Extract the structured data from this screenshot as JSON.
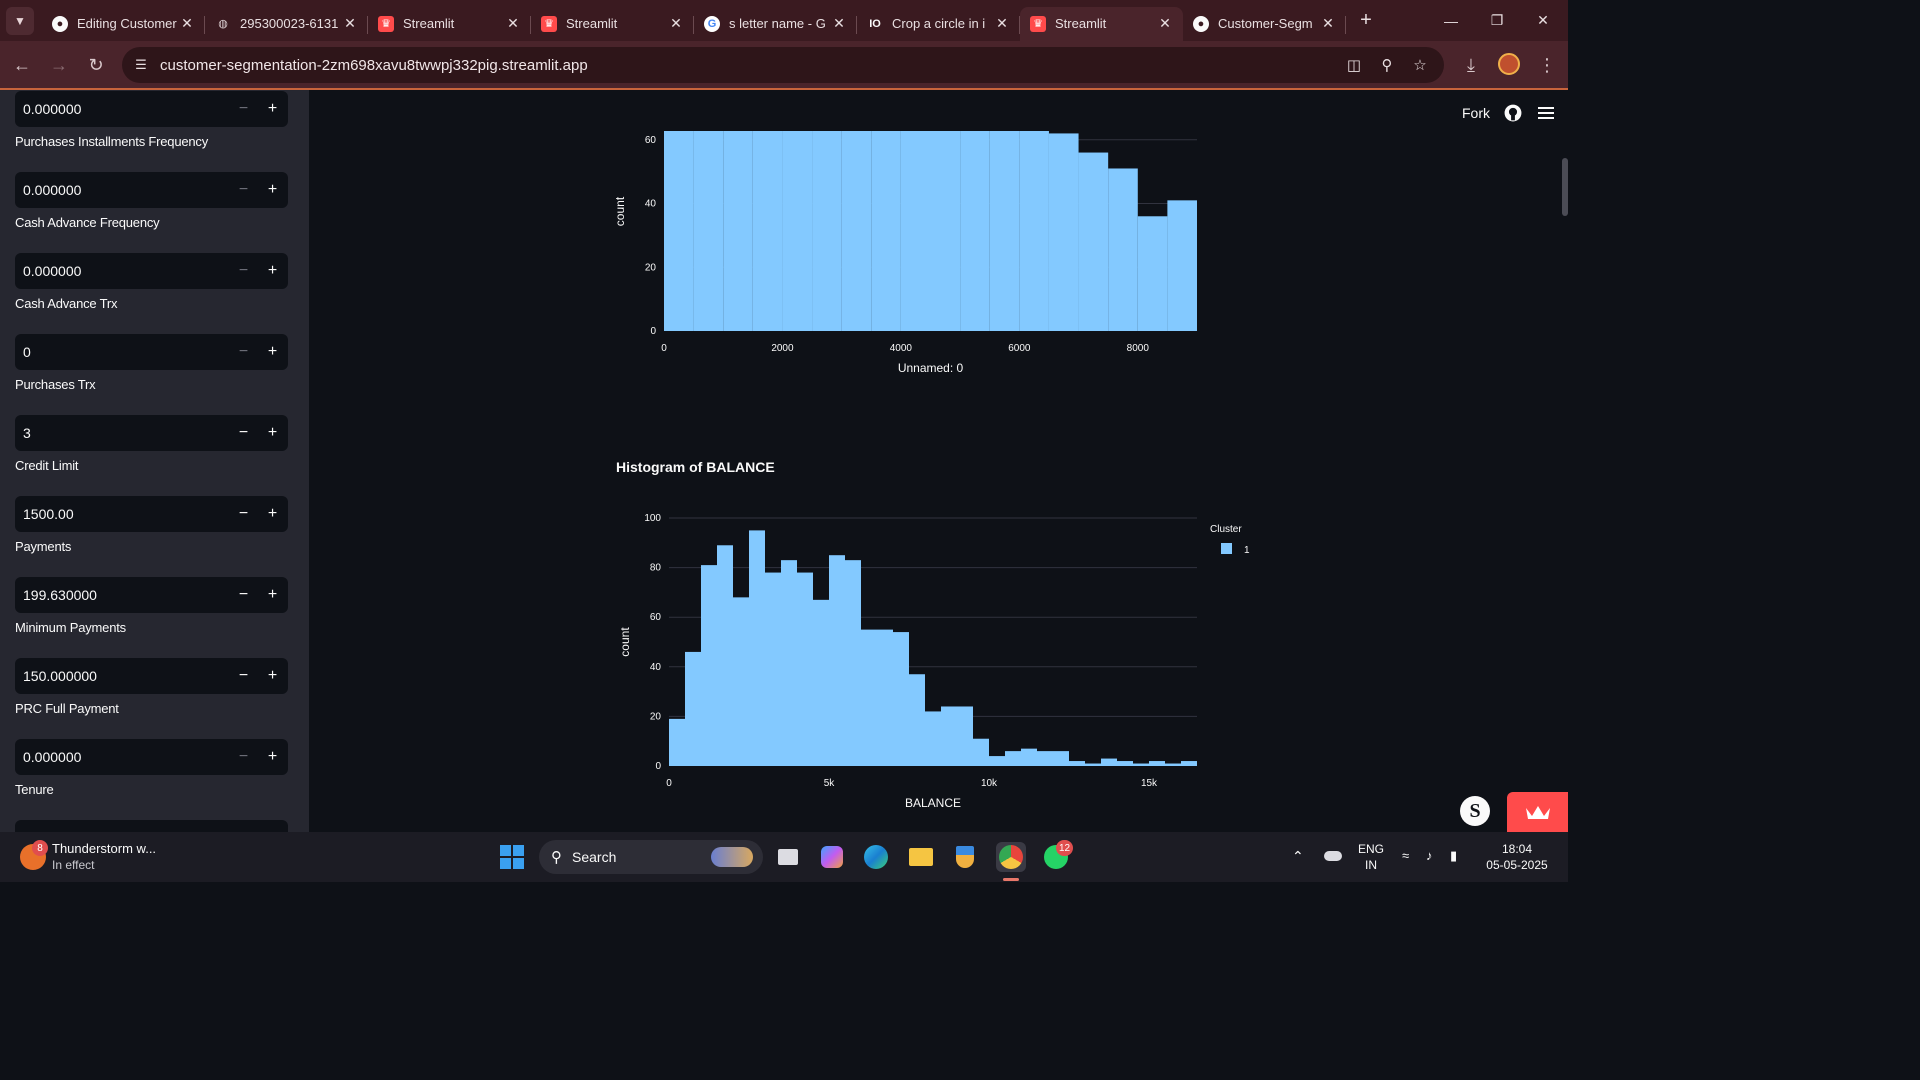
{
  "browser": {
    "tabs": [
      {
        "title": "Editing Customer",
        "icon": "github-icon"
      },
      {
        "title": "295300023-6131",
        "icon": "globe-icon"
      },
      {
        "title": "Streamlit",
        "icon": "streamlit-icon"
      },
      {
        "title": "Streamlit",
        "icon": "streamlit-icon"
      },
      {
        "title": "s letter name - G",
        "icon": "google-icon"
      },
      {
        "title": "Crop a circle in i",
        "icon": "io-icon"
      },
      {
        "title": "Streamlit",
        "icon": "streamlit-icon",
        "active": true
      },
      {
        "title": "Customer-Segm",
        "icon": "github-icon"
      }
    ],
    "url": "customer-segmentation-2zm698xavu8twwpj332pig.streamlit.app",
    "accent": "#c8643c"
  },
  "sidebar": {
    "fields": [
      {
        "label": "",
        "value": "0.000000",
        "minus_enabled": false
      },
      {
        "label": "Purchases Installments Frequency",
        "value": "0.000000",
        "minus_enabled": false
      },
      {
        "label": "Cash Advance Frequency",
        "value": "0.000000",
        "minus_enabled": false
      },
      {
        "label": "Cash Advance Trx",
        "value": "0",
        "minus_enabled": false
      },
      {
        "label": "Purchases Trx",
        "value": "3",
        "minus_enabled": true
      },
      {
        "label": "Credit Limit",
        "value": "1500.00",
        "minus_enabled": true
      },
      {
        "label": "Payments",
        "value": "199.630000",
        "minus_enabled": true
      },
      {
        "label": "Minimum Payments",
        "value": "150.000000",
        "minus_enabled": true
      },
      {
        "label": "PRC Full Payment",
        "value": "0.000000",
        "minus_enabled": false
      },
      {
        "label": "Tenure",
        "value": "",
        "minus_enabled": true
      }
    ],
    "minus_symbol": "−",
    "plus_symbol": "+"
  },
  "header": {
    "fork_label": "Fork"
  },
  "chart_data": [
    {
      "type": "bar",
      "title": "",
      "xlabel": "Unnamed: 0",
      "ylabel": "count",
      "xlim": [
        0,
        9000
      ],
      "ylim": [
        0,
        75
      ],
      "xticks": [
        "0",
        "2000",
        "4000",
        "6000",
        "8000"
      ],
      "yticks": [
        "0",
        "20",
        "40",
        "60"
      ],
      "bin_width": 500,
      "bins_start": [
        0,
        500,
        1000,
        1500,
        2000,
        2500,
        3000,
        3500,
        4000,
        4500,
        5000,
        5500,
        6000,
        6500,
        7000,
        7500,
        8000,
        8500
      ],
      "values": [
        75,
        75,
        68,
        75,
        75,
        75,
        75,
        75,
        71,
        71,
        65,
        70,
        65,
        62,
        56,
        51,
        36,
        41
      ],
      "color": "#83c9ff",
      "note_partial_view": "upper portion of chart scrolled out of view"
    },
    {
      "type": "bar",
      "title": "Histogram of BALANCE",
      "xlabel": "BALANCE",
      "ylabel": "count",
      "xlim": [
        0,
        16500
      ],
      "ylim": [
        0,
        100
      ],
      "xticks": [
        "0",
        "5k",
        "10k",
        "15k"
      ],
      "yticks": [
        "0",
        "20",
        "40",
        "60",
        "80",
        "100"
      ],
      "bin_width": 500,
      "bins_start": [
        0,
        500,
        1000,
        1500,
        2000,
        2500,
        3000,
        3500,
        4000,
        4500,
        5000,
        5500,
        6000,
        6500,
        7000,
        7500,
        8000,
        8500,
        9000,
        9500,
        10000,
        10500,
        11000,
        11500,
        12000,
        12500,
        13000,
        13500,
        14000,
        14500,
        15000,
        15500,
        16000
      ],
      "values": [
        19,
        46,
        81,
        89,
        68,
        95,
        78,
        83,
        78,
        67,
        85,
        83,
        55,
        55,
        54,
        37,
        22,
        24,
        24,
        11,
        4,
        6,
        7,
        6,
        6,
        2,
        1,
        3,
        2,
        1,
        2,
        1,
        2
      ],
      "legend_title": "Cluster",
      "legend": [
        {
          "name": "1",
          "color": "#83c9ff"
        }
      ],
      "legend_position": "top-right",
      "color": "#83c9ff"
    }
  ],
  "taskbar": {
    "weather_title": "Thunderstorm w...",
    "weather_sub": "In effect",
    "weather_badge": "8",
    "search_label": "Search",
    "whatsapp_badge": "12",
    "lang_top": "ENG",
    "lang_bottom": "IN",
    "time": "18:04",
    "date": "05-05-2025"
  }
}
